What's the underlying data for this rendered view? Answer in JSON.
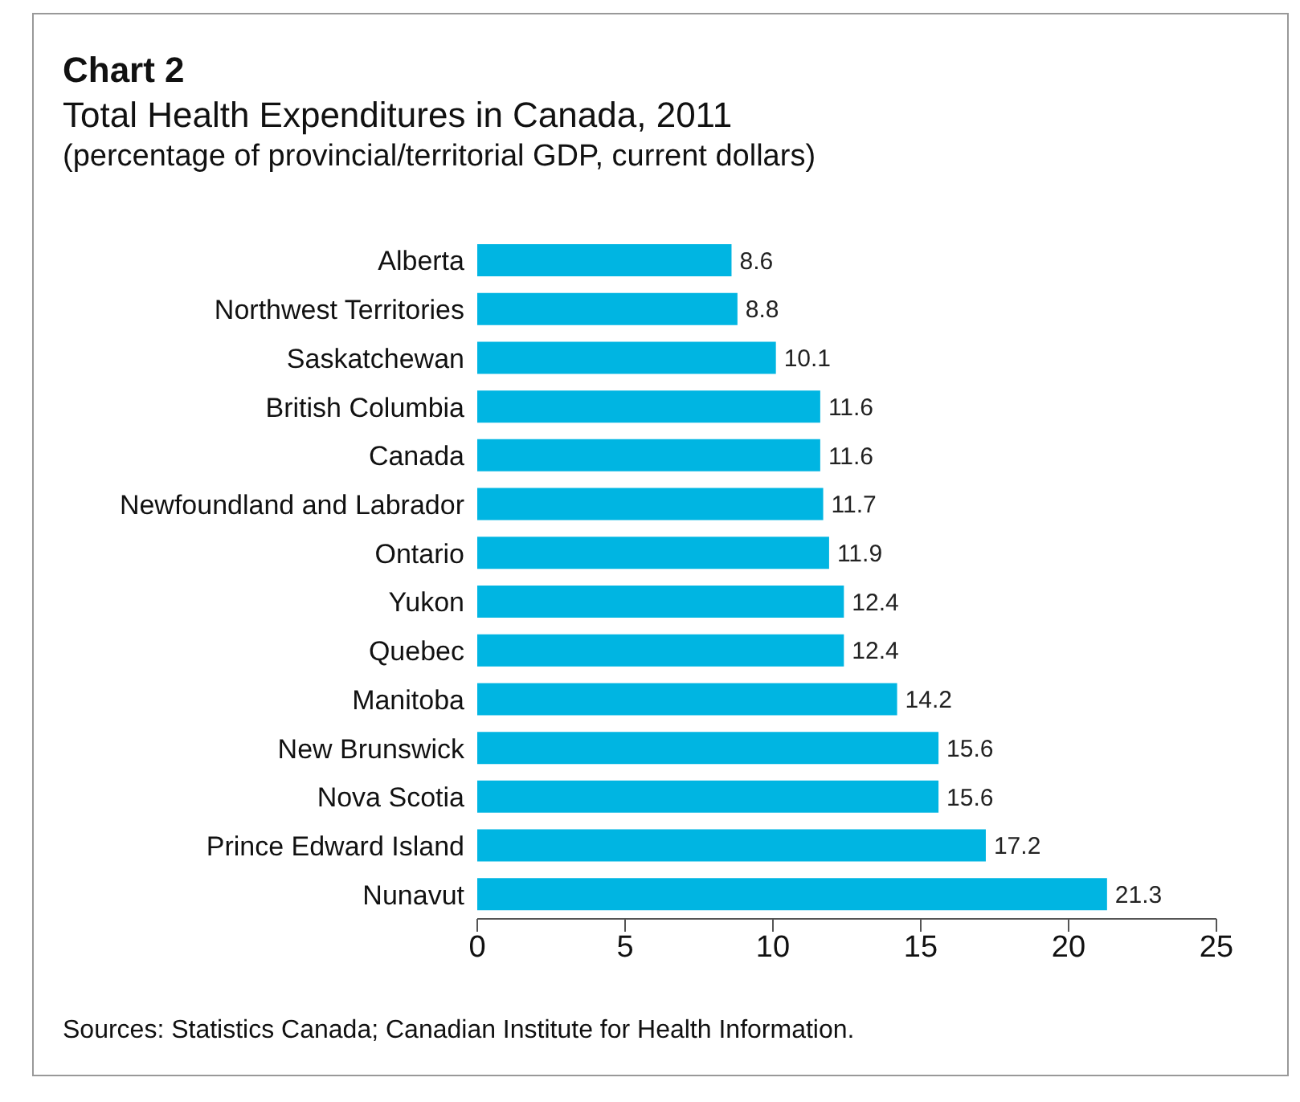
{
  "chart_data": {
    "type": "bar",
    "orientation": "horizontal",
    "title": "Chart 2",
    "subtitle": "Total Health Expenditures in Canada, 2011\n(percentage of provincial/territorial GDP, current dollars)",
    "categories": [
      "Alberta",
      "Northwest Territories",
      "Saskatchewan",
      "British Columbia",
      "Canada",
      "Newfoundland and Labrador",
      "Ontario",
      "Yukon",
      "Quebec",
      "Manitoba",
      "New Brunswick",
      "Nova Scotia",
      "Prince Edward Island",
      "Nunavut"
    ],
    "values": [
      8.6,
      8.8,
      10.1,
      11.6,
      11.6,
      11.7,
      11.9,
      12.4,
      12.4,
      14.2,
      15.6,
      15.6,
      17.2,
      21.3
    ],
    "color": "#00b5e2",
    "xlim": [
      0,
      25
    ],
    "xticks": [
      0,
      5,
      10,
      15,
      20,
      25
    ],
    "grid": false,
    "legend": false,
    "data_labels": true,
    "annotations": [
      "Sources: Statistics Canada; Canadian Institute for Health Information."
    ]
  }
}
